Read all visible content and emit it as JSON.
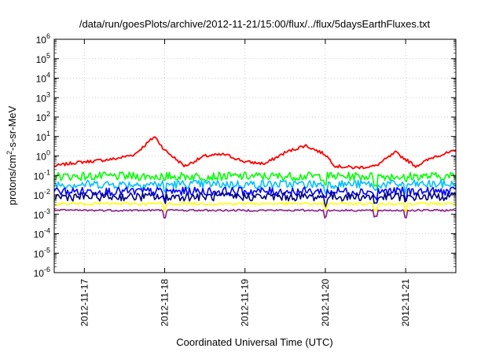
{
  "chart_data": {
    "type": "line",
    "title": "/data/run/goesPlots/archive/2012-11-21/15:00/flux/../flux/5daysEarthFluxes.txt",
    "xlabel": "Coordinated Universal Time (UTC)",
    "ylabel_parts": {
      "a": "protons/cm",
      "sup": "2",
      "b": "-s-sr-MeV"
    },
    "y_scale": "log",
    "ylim": [
      1e-06,
      1000000.0
    ],
    "y_ticks": [
      {
        "base": "10",
        "exp": "-6"
      },
      {
        "base": "10",
        "exp": "-5"
      },
      {
        "base": "10",
        "exp": "-4"
      },
      {
        "base": "10",
        "exp": "-3"
      },
      {
        "base": "10",
        "exp": "-2"
      },
      {
        "base": "10",
        "exp": "-1"
      },
      {
        "base": "10",
        "exp": "0"
      },
      {
        "base": "10",
        "exp": "1"
      },
      {
        "base": "10",
        "exp": "2"
      },
      {
        "base": "10",
        "exp": "3"
      },
      {
        "base": "10",
        "exp": "4"
      },
      {
        "base": "10",
        "exp": "5"
      },
      {
        "base": "10",
        "exp": "6"
      }
    ],
    "xlim": [
      "2012-11-16T15:00",
      "2012-11-21T15:00"
    ],
    "x_ticks": [
      "2012-11-17",
      "2012-11-18",
      "2012-11-19",
      "2012-11-20",
      "2012-11-21"
    ],
    "grid": true,
    "series": [
      {
        "color": "#ff0000",
        "x": [
          "2012-11-16T15:00",
          "2012-11-16T21:00",
          "2012-11-17T03:00",
          "2012-11-17T09:00",
          "2012-11-17T15:00",
          "2012-11-17T21:00",
          "2012-11-18T00:00",
          "2012-11-18T06:00",
          "2012-11-18T12:00",
          "2012-11-18T18:00",
          "2012-11-19T00:00",
          "2012-11-19T06:00",
          "2012-11-19T12:00",
          "2012-11-19T18:00",
          "2012-11-20T00:00",
          "2012-11-20T03:00",
          "2012-11-20T09:00",
          "2012-11-20T15:00",
          "2012-11-20T21:00",
          "2012-11-21T03:00",
          "2012-11-21T09:00",
          "2012-11-21T15:00"
        ],
        "values": [
          0.3,
          0.45,
          0.55,
          0.7,
          1.2,
          10,
          2,
          0.3,
          1.0,
          1.2,
          0.5,
          0.4,
          1.5,
          3.5,
          1.2,
          0.3,
          0.25,
          0.3,
          1.5,
          0.3,
          1.0,
          1.8
        ]
      },
      {
        "color": "#00ff00",
        "x": [
          "2012-11-16T15:00",
          "2012-11-21T15:00"
        ],
        "values": [
          0.09,
          0.09
        ]
      },
      {
        "color": "#00bfff",
        "x": [
          "2012-11-16T15:00",
          "2012-11-21T15:00"
        ],
        "values": [
          0.035,
          0.035
        ]
      },
      {
        "color": "#0000ff",
        "x": [
          "2012-11-16T15:00",
          "2012-11-21T15:00"
        ],
        "values": [
          0.015,
          0.015
        ]
      },
      {
        "color": "#000080",
        "x": [
          "2012-11-16T15:00",
          "2012-11-21T15:00"
        ],
        "values": [
          0.008,
          0.008
        ]
      },
      {
        "color": "#ffff00",
        "x": [
          "2012-11-16T15:00",
          "2012-11-21T15:00"
        ],
        "values": [
          0.0035,
          0.0035
        ]
      },
      {
        "color": "#8b1a8b",
        "x": [
          "2012-11-16T15:00",
          "2012-11-21T15:00"
        ],
        "values": [
          0.0016,
          0.0016
        ]
      }
    ]
  }
}
